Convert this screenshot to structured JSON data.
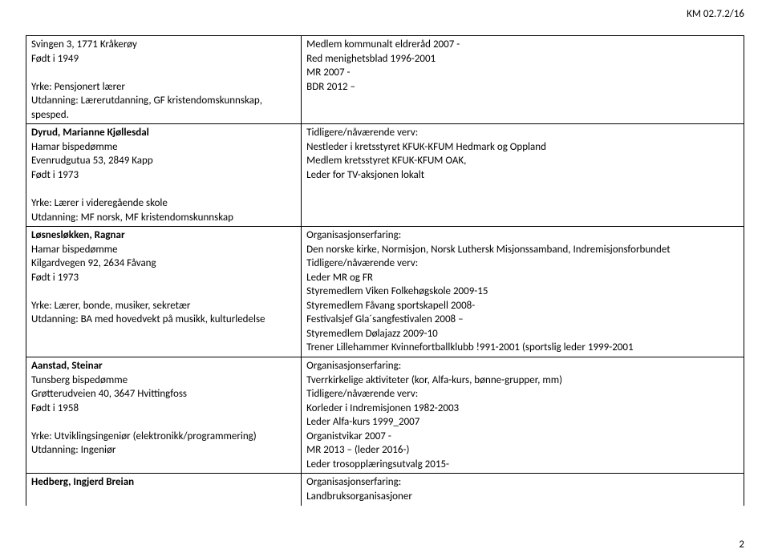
{
  "header": {
    "code": "KM 02.7.2/16"
  },
  "footer": {
    "page": "2"
  },
  "rows": [
    {
      "left": [
        "Svingen 3, 1771 Kråkerøy",
        "Født i 1949",
        "",
        "Yrke: Pensjonert lærer",
        "Utdanning: Lærerutdanning, GF kristendomskunnskap, spesped."
      ],
      "right": [
        "Medlem kommunalt eldreråd 2007 -",
        "Red menighetsblad 1996-2001",
        "MR 2007 -",
        "BDR 2012 –"
      ],
      "sep": true
    },
    {
      "left_bold": "Dyrud, Marianne Kjøllesdal",
      "left": [
        "Hamar bispedømme",
        "Evenrudgutua 53, 2849 Kapp",
        "Født i 1973",
        "",
        "Yrke: Lærer i videregående skole",
        "Utdanning: MF norsk, MF kristendomskunnskap"
      ],
      "right": [
        "Tidligere/nåværende verv:",
        "Nestleder i kretsstyret KFUK-KFUM Hedmark og Oppland",
        "Medlem kretsstyret KFUK-KFUM OAK,",
        "Leder for TV-aksjonen lokalt"
      ],
      "sep": true
    },
    {
      "left_bold": "Løsnesløkken, Ragnar",
      "left": [
        "Hamar bispedømme",
        "Kilgardvegen 92, 2634 Fåvang",
        "Født i 1973",
        "",
        "Yrke: Lærer, bonde, musiker, sekretær",
        "Utdanning: BA med hovedvekt på musikk, kulturledelse"
      ],
      "right": [
        "Organisasjonserfaring:",
        "Den norske kirke, Normisjon, Norsk Luthersk Misjonssamband, Indremisjonsforbundet",
        "Tidligere/nåværende verv:",
        "Leder MR og FR",
        "Styremedlem Viken Folkehøgskole 2009-15",
        "Styremedlem Fåvang sportskapell 2008-",
        "Festivalsjef Gla´sangfestivalen 2008 –",
        "Styremedlem Dølajazz 2009-10",
        "Trener Lillehammer Kvinnefortballklubb !991-2001 (sportslig leder 1999-2001"
      ],
      "sep": true
    },
    {
      "left_bold": "Aanstad, Steinar",
      "left": [
        "Tunsberg bispedømme",
        "Grøtterudveien 40, 3647 Hvittingfoss",
        "Født i 1958",
        "",
        "Yrke: Utviklingsingeniør (elektronikk/programmering)",
        "Utdanning: Ingeniør"
      ],
      "right": [
        "Organisasjonserfaring:",
        "Tverrkirkelige aktiviteter (kor, Alfa-kurs, bønne-grupper, mm)",
        "Tidligere/nåværende verv:",
        "Korleder i Indremisjonen 1982-2003",
        "Leder Alfa-kurs 1999_2007",
        "Organistvikar 2007 -",
        "MR 2013 – (leder 2016-)",
        "Leder trosopplæringsutvalg 2015-"
      ],
      "sep": true
    },
    {
      "left_bold": "Hedberg, Ingjerd Breian",
      "left": [],
      "right": [
        "Organisasjonserfaring:",
        "Landbruksorganisasjoner"
      ],
      "sep": false
    }
  ]
}
